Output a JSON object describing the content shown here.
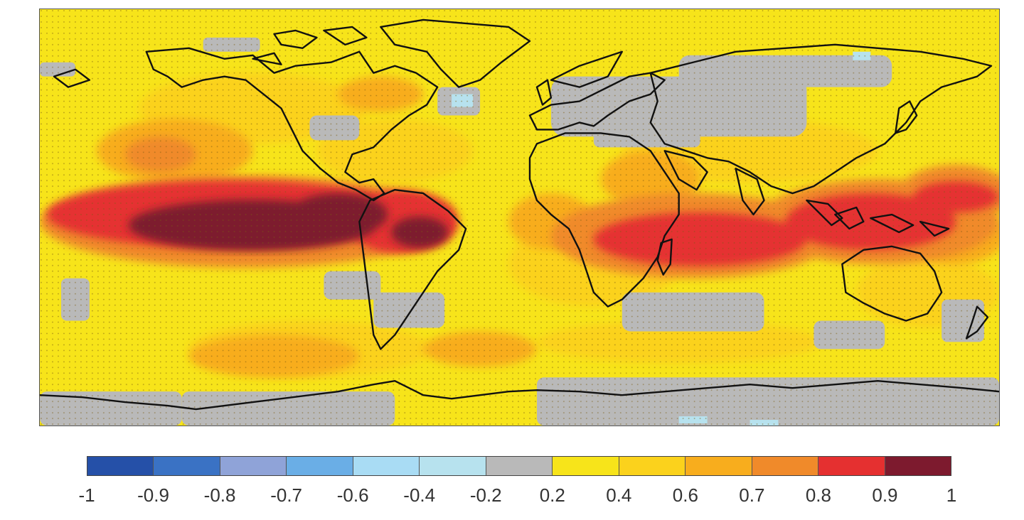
{
  "colorbar": {
    "bins": [
      {
        "from": -1.0,
        "to": -0.9,
        "color": "#2550a8"
      },
      {
        "from": -0.9,
        "to": -0.8,
        "color": "#3a72c4"
      },
      {
        "from": -0.8,
        "to": -0.7,
        "color": "#8fa3d8"
      },
      {
        "from": -0.7,
        "to": -0.6,
        "color": "#6aaee6"
      },
      {
        "from": -0.6,
        "to": -0.4,
        "color": "#a9dcf4"
      },
      {
        "from": -0.4,
        "to": -0.2,
        "color": "#b7e2ee"
      },
      {
        "from": -0.2,
        "to": 0.2,
        "color": "#b9b9b9"
      },
      {
        "from": 0.2,
        "to": 0.4,
        "color": "#f7e41a"
      },
      {
        "from": 0.4,
        "to": 0.6,
        "color": "#fbd21c"
      },
      {
        "from": 0.6,
        "to": 0.7,
        "color": "#f8ad1d"
      },
      {
        "from": 0.7,
        "to": 0.8,
        "color": "#f08a2a"
      },
      {
        "from": 0.8,
        "to": 0.9,
        "color": "#e53030"
      },
      {
        "from": 0.9,
        "to": 1.0,
        "color": "#7d1a2e"
      }
    ],
    "tick_labels": [
      "-1",
      "-0.9",
      "-0.8",
      "-0.7",
      "-0.6",
      "-0.4",
      "-0.2",
      "0.2",
      "0.4",
      "0.6",
      "0.7",
      "0.8",
      "0.9",
      "1"
    ]
  },
  "map": {
    "projection": "equirectangular, global",
    "stippling": "dense dot pattern over most of the field",
    "regions": [
      {
        "name": "central equatorial pacific",
        "level": ">0.9"
      },
      {
        "name": "northern south america",
        "level": ">0.9"
      },
      {
        "name": "maritime continent",
        "level": "0.8-0.9"
      },
      {
        "name": "equatorial indian ocean",
        "level": "0.8-0.9"
      },
      {
        "name": "eurasia",
        "level": "-0.2 to 0.2"
      },
      {
        "name": "antarctica",
        "level": "-0.2 to 0.2"
      },
      {
        "name": "southern ocean",
        "level": "0.2-0.4"
      }
    ]
  }
}
